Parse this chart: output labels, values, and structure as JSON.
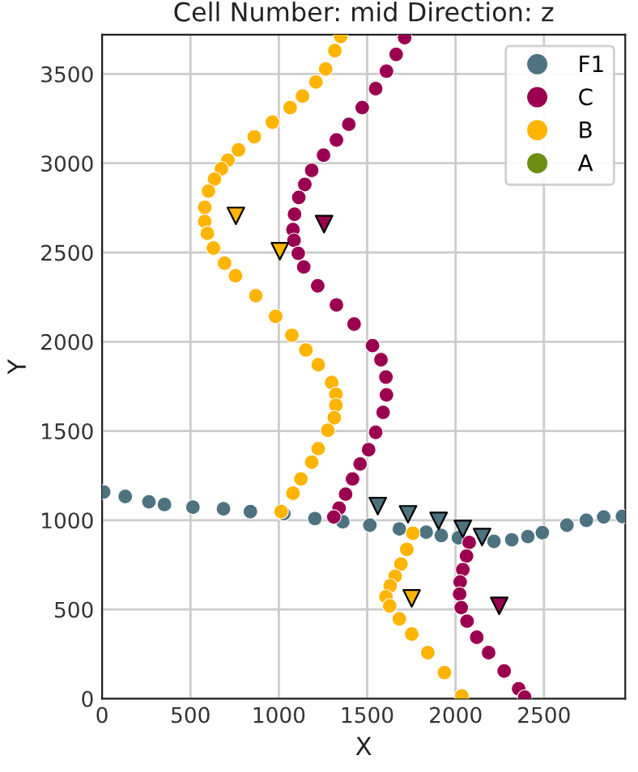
{
  "chart_data": {
    "type": "scatter",
    "title": "Cell Number: mid Direction: z",
    "xlabel": "X",
    "ylabel": "Y",
    "xlim": [
      0,
      2960
    ],
    "ylim": [
      0,
      3720
    ],
    "xticks": [
      0,
      500,
      1000,
      1500,
      2000,
      2500
    ],
    "yticks": [
      0,
      500,
      1000,
      1500,
      2000,
      2500,
      3000,
      3500
    ],
    "grid": true,
    "legend": "top right",
    "marker": "circle",
    "series": [
      {
        "name": "F1",
        "color": "#4e7380",
        "x": [
          9,
          131,
          265,
          353,
          514,
          687,
          839,
          1028,
          1204,
          1362,
          1515,
          1682,
          1834,
          1919,
          2016,
          2217,
          2318,
          2409,
          2491,
          2630,
          2740,
          2838,
          2944
        ],
        "values": [
          1158,
          1133,
          1103,
          1088,
          1073,
          1064,
          1048,
          1036,
          1009,
          991,
          972,
          951,
          933,
          914,
          902,
          881,
          890,
          908,
          930,
          972,
          999,
          1018,
          1021
        ]
      },
      {
        "name": "C",
        "color": "#9b0050",
        "x": [
          1712,
          1664,
          1609,
          1548,
          1472,
          1396,
          1326,
          1253,
          1186,
          1147,
          1113,
          1089,
          1080,
          1086,
          1110,
          1141,
          1220,
          1326,
          1426,
          1530,
          1578,
          1606,
          1609,
          1590,
          1548,
          1508,
          1460,
          1417,
          1378,
          1341,
          1311,
          2077,
          2062,
          2041,
          2026,
          2023,
          2032,
          2065,
          2120,
          2187,
          2275,
          2357,
          2391
        ],
        "values": [
          3704,
          3610,
          3516,
          3418,
          3312,
          3218,
          3130,
          3045,
          2960,
          2881,
          2808,
          2714,
          2628,
          2568,
          2495,
          2419,
          2313,
          2206,
          2099,
          1978,
          1899,
          1802,
          1702,
          1604,
          1492,
          1395,
          1315,
          1231,
          1146,
          1067,
          1018,
          875,
          799,
          723,
          654,
          586,
          510,
          434,
          344,
          258,
          155,
          55,
          9
        ]
      },
      {
        "name": "B",
        "color": "#ffb400",
        "x": [
          1350,
          1317,
          1265,
          1210,
          1134,
          1064,
          964,
          861,
          772,
          712,
          675,
          636,
          602,
          581,
          581,
          596,
          630,
          693,
          755,
          870,
          982,
          1074,
          1153,
          1223,
          1299,
          1323,
          1323,
          1314,
          1277,
          1223,
          1186,
          1125,
          1080,
          1013,
          1758,
          1724,
          1691,
          1658,
          1630,
          1606,
          1627,
          1682,
          1752,
          1843,
          1937,
          2035
        ],
        "values": [
          3710,
          3631,
          3528,
          3455,
          3376,
          3312,
          3230,
          3148,
          3075,
          3017,
          2969,
          2911,
          2844,
          2753,
          2674,
          2607,
          2525,
          2440,
          2370,
          2258,
          2142,
          2036,
          1954,
          1871,
          1771,
          1705,
          1644,
          1574,
          1504,
          1401,
          1325,
          1231,
          1151,
          1048,
          927,
          836,
          754,
          686,
          632,
          571,
          520,
          447,
          362,
          258,
          146,
          15
        ]
      },
      {
        "name": "A",
        "color": "#6b8e12"
      },
      {
        "color": "#4e7380",
        "marker": "triangle",
        "x": [
          1560,
          1731,
          1904,
          2041,
          2150
        ],
        "values": [
          1079,
          1033,
          996,
          951,
          905
        ]
      },
      {
        "color": "#ffb400",
        "marker": "triangle",
        "x": [
          757,
          1006,
          1752
        ],
        "values": [
          2705,
          2507,
          562
        ]
      },
      {
        "color": "#9b0050",
        "marker": "triangle",
        "x": [
          1256,
          2247
        ],
        "values": [
          2659,
          520
        ]
      }
    ]
  }
}
